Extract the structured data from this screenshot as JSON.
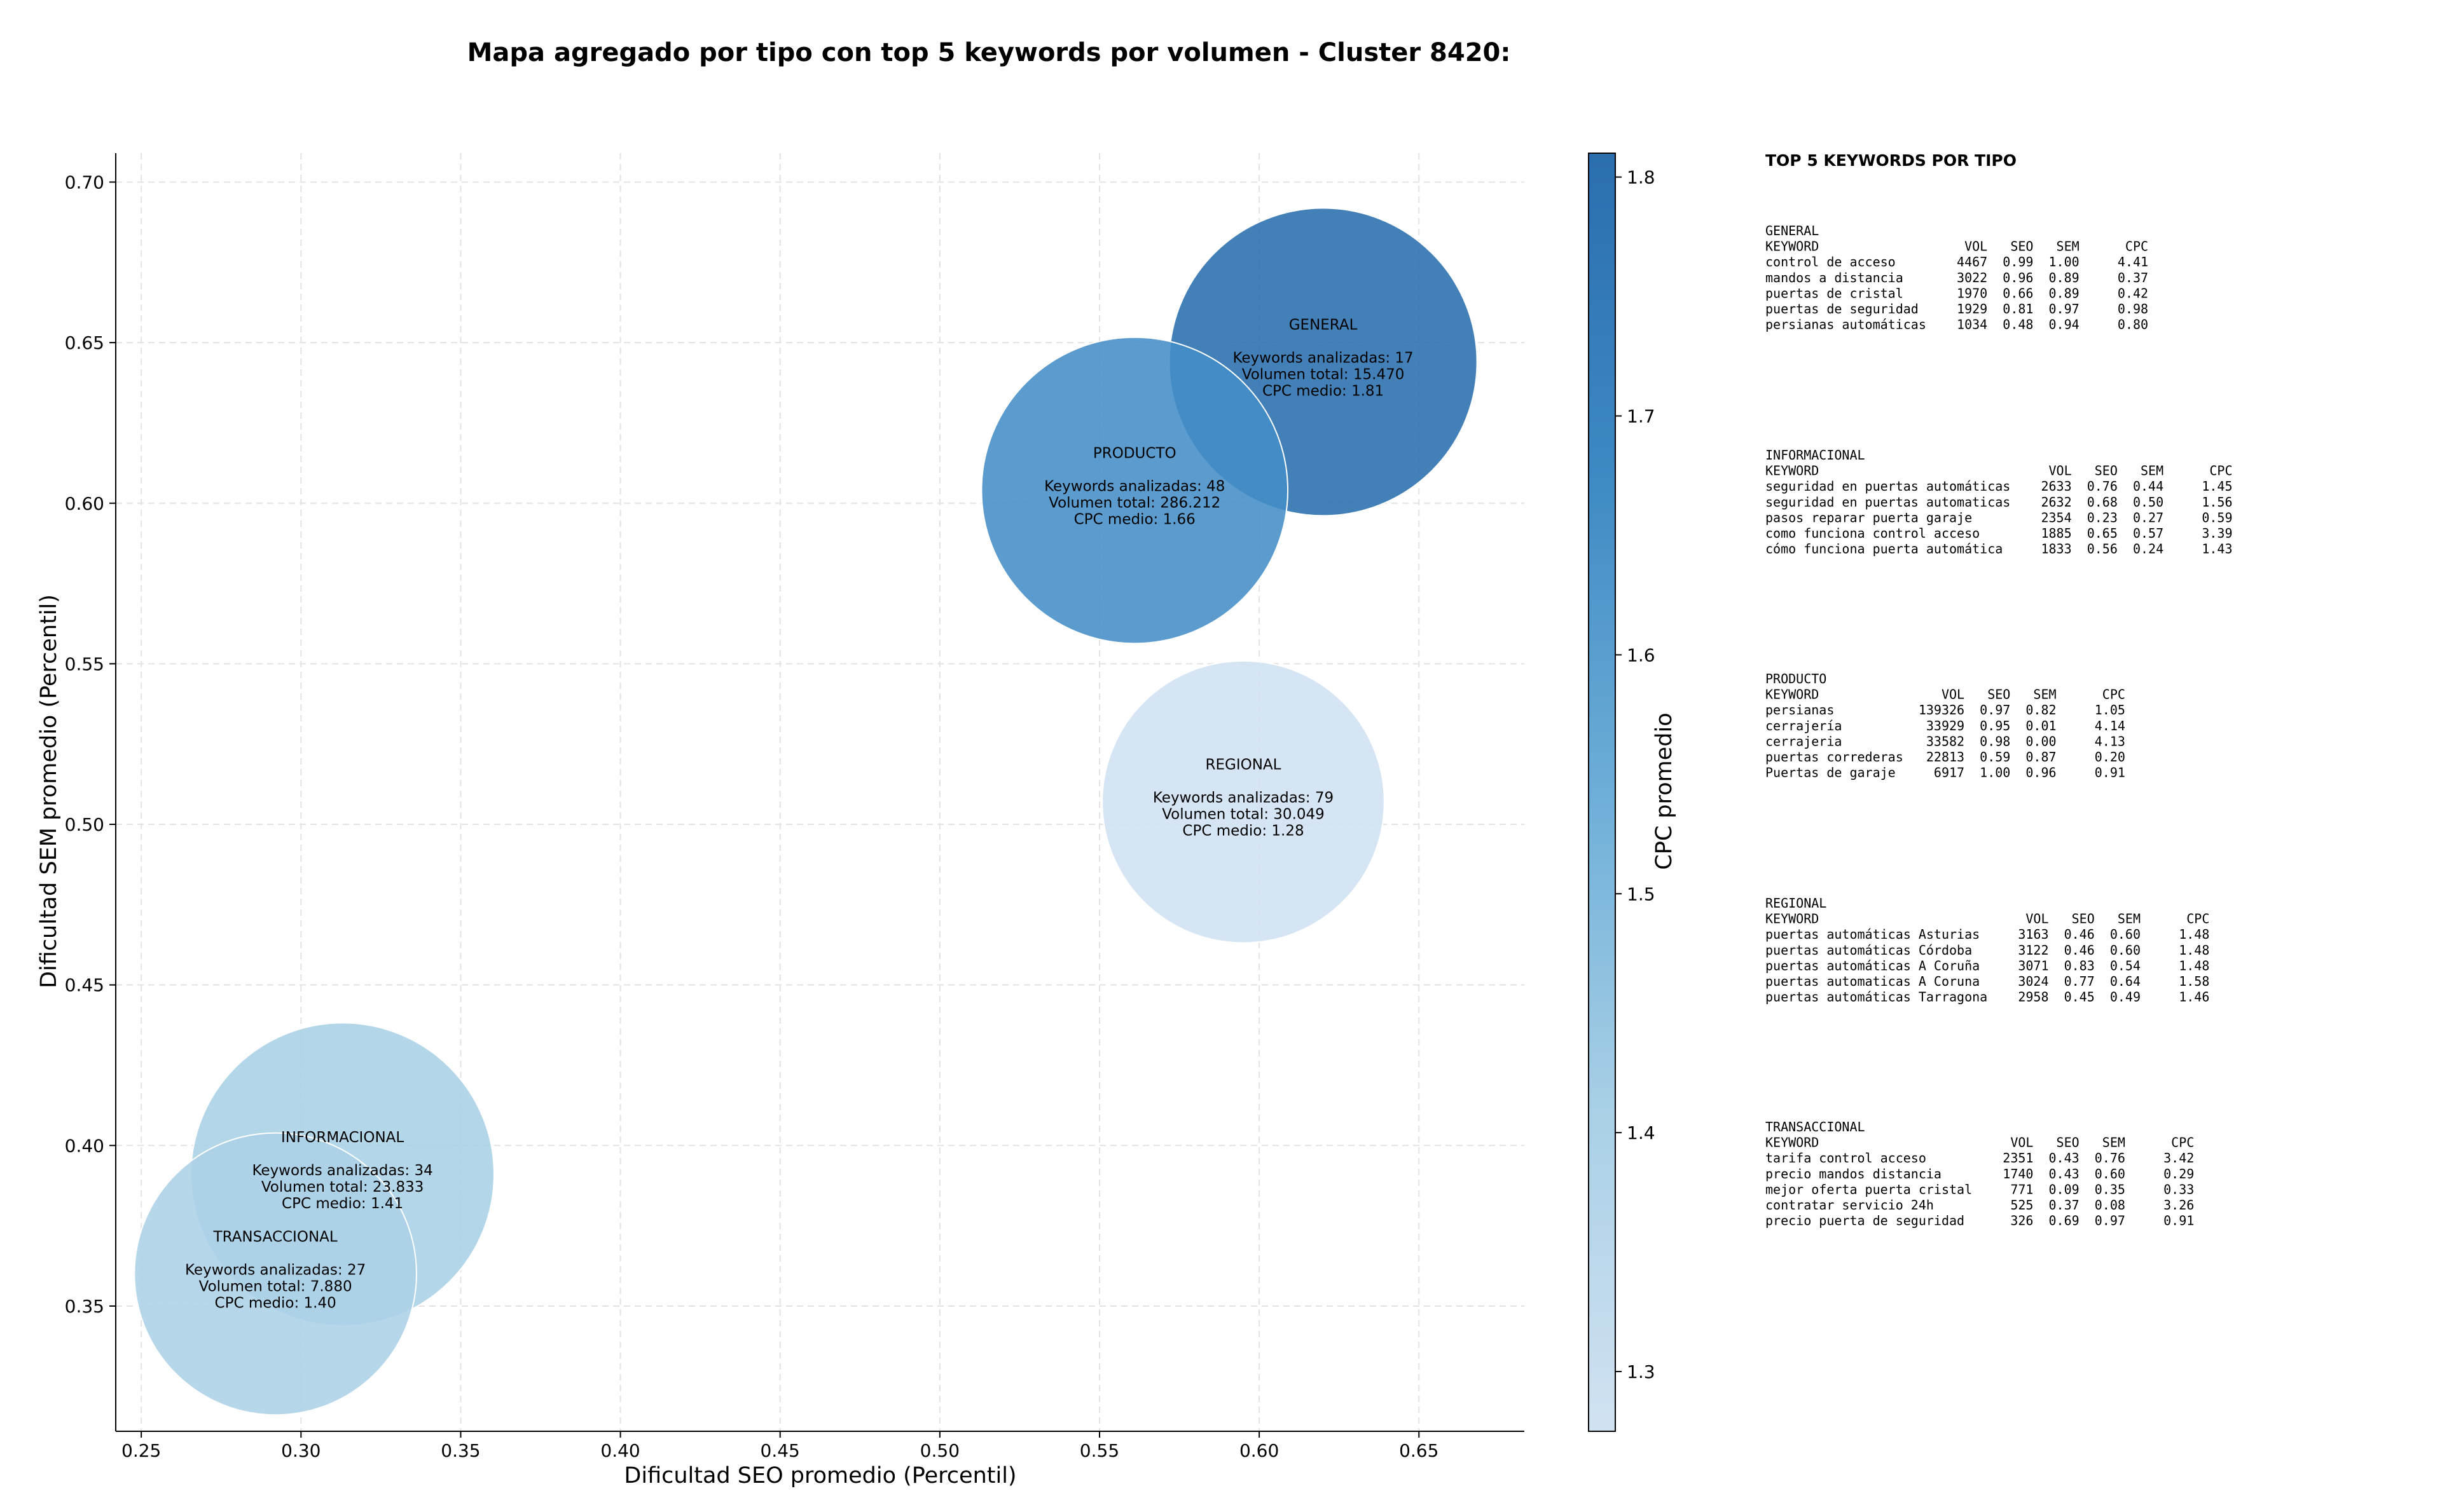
{
  "chart_data": {
    "type": "scatter",
    "title": "Mapa agregado por tipo con top 5 keywords por volumen - Cluster 8420:",
    "xlabel": "Dificultad SEO promedio (Percentil)",
    "ylabel": "Dificultad SEM promedio (Percentil)",
    "xlim": [
      0.242,
      0.683
    ],
    "ylim": [
      0.311,
      0.709
    ],
    "xticks": [
      0.25,
      0.3,
      0.35,
      0.4,
      0.45,
      0.5,
      0.55,
      0.6,
      0.65
    ],
    "yticks": [
      0.35,
      0.4,
      0.45,
      0.5,
      0.55,
      0.6,
      0.65,
      0.7
    ],
    "grid": true,
    "colorbar": {
      "label": "CPC promedio",
      "min": 1.275,
      "max": 1.81,
      "ticks": [
        1.3,
        1.4,
        1.5,
        1.6,
        1.7,
        1.8
      ],
      "colors": [
        "#d1e2f2",
        "#a9d0e6",
        "#6daed8",
        "#3e89c3",
        "#2a6eae"
      ]
    },
    "points": [
      {
        "name": "GENERAL",
        "x": 0.62,
        "y": 0.644,
        "cpc": 1.81,
        "bubble": 1.0,
        "lines": [
          "Keywords analizadas: 17",
          "Volumen total: 15.470",
          "CPC medio: 1.81"
        ]
      },
      {
        "name": "PRODUCTO",
        "x": 0.561,
        "y": 0.604,
        "cpc": 1.66,
        "bubble": 0.99,
        "lines": [
          "Keywords analizadas: 48",
          "Volumen total: 286.212",
          "CPC medio: 1.66"
        ]
      },
      {
        "name": "REGIONAL",
        "x": 0.595,
        "y": 0.507,
        "cpc": 1.28,
        "bubble": 0.84,
        "lines": [
          "Keywords analizadas: 79",
          "Volumen total: 30.049",
          "CPC medio: 1.28"
        ]
      },
      {
        "name": "INFORMACIONAL",
        "x": 0.313,
        "y": 0.391,
        "cpc": 1.41,
        "bubble": 0.97,
        "lines": [
          "Keywords analizadas: 34",
          "Volumen total: 23.833",
          "CPC medio: 1.41"
        ]
      },
      {
        "name": "TRANSACCIONAL",
        "x": 0.292,
        "y": 0.36,
        "cpc": 1.4,
        "bubble": 0.84,
        "lines": [
          "Keywords analizadas: 27",
          "Volumen total: 7.880",
          "CPC medio: 1.40"
        ]
      }
    ]
  },
  "side_panel": {
    "heading": "TOP 5 KEYWORDS POR TIPO",
    "columns": [
      "KEYWORD",
      "VOL",
      "SEO",
      "SEM",
      "CPC"
    ],
    "groups": [
      {
        "name": "GENERAL",
        "rows": [
          [
            "control de acceso",
            "4467",
            "0.99",
            "1.00",
            "4.41"
          ],
          [
            "mandos a distancia",
            "3022",
            "0.96",
            "0.89",
            "0.37"
          ],
          [
            "puertas de cristal",
            "1970",
            "0.66",
            "0.89",
            "0.42"
          ],
          [
            "puertas de seguridad",
            "1929",
            "0.81",
            "0.97",
            "0.98"
          ],
          [
            "persianas automáticas",
            "1034",
            "0.48",
            "0.94",
            "0.80"
          ]
        ]
      },
      {
        "name": "INFORMACIONAL",
        "rows": [
          [
            "seguridad en puertas automáticas",
            "2633",
            "0.76",
            "0.44",
            "1.45"
          ],
          [
            "seguridad en puertas automaticas",
            "2632",
            "0.68",
            "0.50",
            "1.56"
          ],
          [
            "pasos reparar puerta garaje",
            "2354",
            "0.23",
            "0.27",
            "0.59"
          ],
          [
            "como funciona control acceso",
            "1885",
            "0.65",
            "0.57",
            "3.39"
          ],
          [
            "cómo funciona puerta automática",
            "1833",
            "0.56",
            "0.24",
            "1.43"
          ]
        ]
      },
      {
        "name": "PRODUCTO",
        "rows": [
          [
            "persianas",
            "139326",
            "0.97",
            "0.82",
            "1.05"
          ],
          [
            "cerrajería",
            "33929",
            "0.95",
            "0.01",
            "4.14"
          ],
          [
            "cerrajeria",
            "33582",
            "0.98",
            "0.00",
            "4.13"
          ],
          [
            "puertas correderas",
            "22813",
            "0.59",
            "0.87",
            "0.20"
          ],
          [
            "Puertas de garaje",
            "6917",
            "1.00",
            "0.96",
            "0.91"
          ]
        ]
      },
      {
        "name": "REGIONAL",
        "rows": [
          [
            "puertas automáticas Asturias",
            "3163",
            "0.46",
            "0.60",
            "1.48"
          ],
          [
            "puertas automáticas Córdoba",
            "3122",
            "0.46",
            "0.60",
            "1.48"
          ],
          [
            "puertas automáticas A Coruña",
            "3071",
            "0.83",
            "0.54",
            "1.48"
          ],
          [
            "puertas automaticas A Coruna",
            "3024",
            "0.77",
            "0.64",
            "1.58"
          ],
          [
            "puertas automáticas Tarragona",
            "2958",
            "0.45",
            "0.49",
            "1.46"
          ]
        ]
      },
      {
        "name": "TRANSACCIONAL",
        "rows": [
          [
            "tarifa control acceso",
            "2351",
            "0.43",
            "0.76",
            "3.42"
          ],
          [
            "precio mandos distancia",
            "1740",
            "0.43",
            "0.60",
            "0.29"
          ],
          [
            "mejor oferta puerta cristal",
            "771",
            "0.09",
            "0.35",
            "0.33"
          ],
          [
            "contratar servicio 24h",
            "525",
            "0.37",
            "0.08",
            "3.26"
          ],
          [
            "precio puerta de seguridad",
            "326",
            "0.69",
            "0.97",
            "0.91"
          ]
        ]
      }
    ]
  }
}
